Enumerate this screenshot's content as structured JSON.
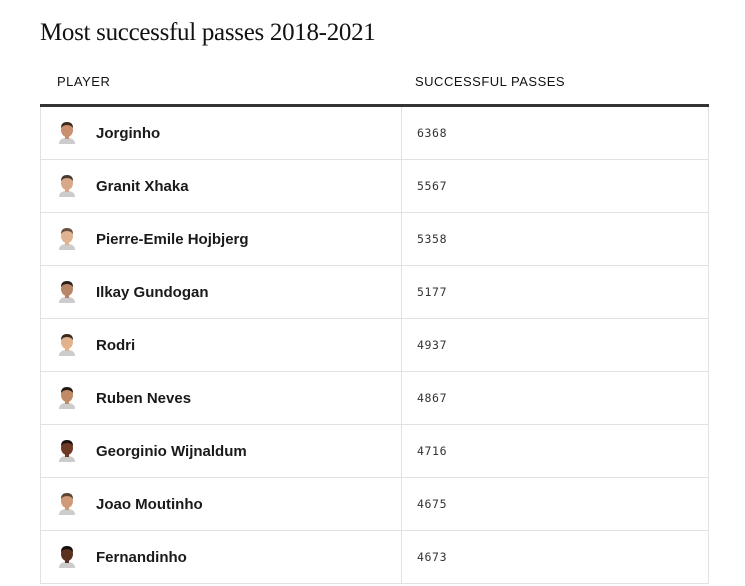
{
  "title": "Most successful passes 2018-2021",
  "table": {
    "headers": {
      "player": "PLAYER",
      "passes": "SUCCESSFUL PASSES"
    },
    "rows": [
      {
        "player": "Jorginho",
        "passes": "6368",
        "avatar_icon": "player-headshot-icon",
        "skin": "#c98f6e",
        "hair": "#3a2a20"
      },
      {
        "player": "Granit Xhaka",
        "passes": "5567",
        "avatar_icon": "player-headshot-icon",
        "skin": "#d9a88a",
        "hair": "#4a3a30"
      },
      {
        "player": "Pierre-Emile Hojbjerg",
        "passes": "5358",
        "avatar_icon": "player-headshot-icon",
        "skin": "#e0b493",
        "hair": "#6a5040"
      },
      {
        "player": "Ilkay Gundogan",
        "passes": "5177",
        "avatar_icon": "player-headshot-icon",
        "skin": "#b98569",
        "hair": "#2a201a"
      },
      {
        "player": "Rodri",
        "passes": "4937",
        "avatar_icon": "player-headshot-icon",
        "skin": "#e2b28c",
        "hair": "#3a2a1e"
      },
      {
        "player": "Ruben Neves",
        "passes": "4867",
        "avatar_icon": "player-headshot-icon",
        "skin": "#c08a66",
        "hair": "#231a14"
      },
      {
        "player": "Georginio Wijnaldum",
        "passes": "4716",
        "avatar_icon": "player-headshot-icon",
        "skin": "#6e3a26",
        "hair": "#1a1210"
      },
      {
        "player": "Joao Moutinho",
        "passes": "4675",
        "avatar_icon": "player-headshot-icon",
        "skin": "#cf9a78",
        "hair": "#5a4434"
      },
      {
        "player": "Fernandinho",
        "passes": "4673",
        "avatar_icon": "player-headshot-icon",
        "skin": "#5a3020",
        "hair": "#120c0a"
      }
    ]
  }
}
